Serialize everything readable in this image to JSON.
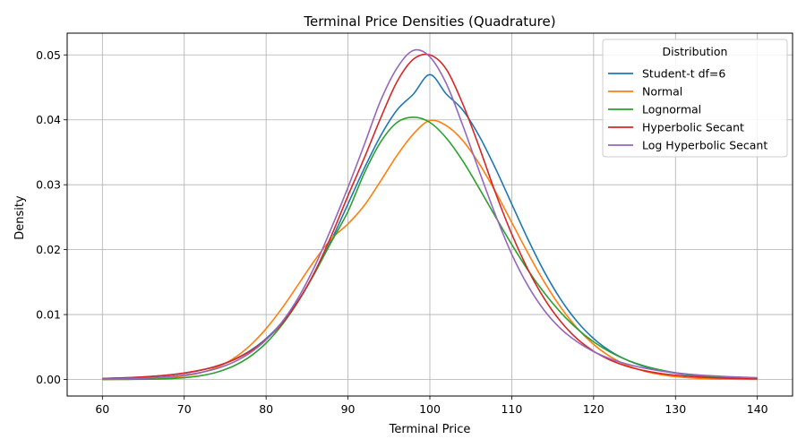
{
  "chart_data": {
    "type": "line",
    "title": "Terminal Price Densities (Quadrature)",
    "xlabel": "Terminal Price",
    "ylabel": "Density",
    "xlim": [
      55.7,
      144.3
    ],
    "ylim": [
      -0.00255,
      0.05335
    ],
    "xticks": [
      60,
      70,
      80,
      90,
      100,
      110,
      120,
      130,
      140
    ],
    "xtick_labels": [
      "60",
      "70",
      "80",
      "90",
      "100",
      "110",
      "120",
      "130",
      "140"
    ],
    "yticks": [
      0,
      0.01,
      0.02,
      0.03,
      0.04,
      0.05
    ],
    "ytick_labels": [
      "0.00",
      "0.01",
      "0.02",
      "0.03",
      "0.04",
      "0.05"
    ],
    "grid": true,
    "legend": {
      "title": "Distribution",
      "position": "top-right"
    },
    "x": [
      60,
      62,
      64,
      66,
      68,
      70,
      72,
      74,
      76,
      78,
      80,
      82,
      84,
      86,
      88,
      90,
      92,
      94,
      96,
      98,
      100,
      102,
      104,
      106,
      108,
      110,
      112,
      114,
      116,
      118,
      120,
      122,
      124,
      126,
      128,
      130,
      132,
      134,
      136,
      138,
      140
    ],
    "series": [
      {
        "name": "Student-t df=6",
        "color": "#1f77b4",
        "values": [
          0.00015,
          0.00022,
          0.00032,
          0.00046,
          0.00067,
          0.00097,
          0.00142,
          0.00208,
          0.00303,
          0.00439,
          0.0063,
          0.0089,
          0.0123,
          0.01654,
          0.02155,
          0.02703,
          0.03255,
          0.03757,
          0.04153,
          0.04398,
          0.04696,
          0.04398,
          0.04153,
          0.03757,
          0.03255,
          0.02703,
          0.02155,
          0.01654,
          0.0123,
          0.0089,
          0.0063,
          0.00439,
          0.00303,
          0.00208,
          0.00142,
          0.00097,
          0.00067,
          0.00046,
          0.00032,
          0.00022,
          0.00015
        ]
      },
      {
        "name": "Normal",
        "color": "#ff7f0e",
        "values": [
          1e-05,
          2e-05,
          5e-05,
          0.00012,
          0.00027,
          0.00054,
          0.00104,
          0.00189,
          0.00323,
          0.00519,
          0.00783,
          0.01109,
          0.01477,
          0.01848,
          0.02171,
          0.02397,
          0.02681,
          0.0306,
          0.03453,
          0.03783,
          0.03989,
          0.0391,
          0.03683,
          0.03329,
          0.02897,
          0.0242,
          0.01942,
          0.01497,
          0.01109,
          0.0079,
          0.0054,
          0.00355,
          0.00224,
          0.00136,
          0.00079,
          0.00044,
          0.00024,
          0.00012,
          6e-05,
          3e-05,
          1e-05
        ]
      },
      {
        "name": "Lognormal",
        "color": "#2ca02c",
        "values": [
          0.0,
          1e-05,
          2e-05,
          5e-05,
          0.00012,
          0.00027,
          0.00058,
          0.00113,
          0.00206,
          0.0035,
          0.00561,
          0.0085,
          0.01219,
          0.01655,
          0.02127,
          0.02589,
          0.0318,
          0.0366,
          0.0396,
          0.0404,
          0.0396,
          0.0372,
          0.0337,
          0.0295,
          0.0251,
          0.0208,
          0.0168,
          0.0133,
          0.0103,
          0.0078,
          0.0058,
          0.00424,
          0.00305,
          0.00216,
          0.00151,
          0.00104,
          0.00071,
          0.00048,
          0.00032,
          0.00021,
          0.00014
        ]
      },
      {
        "name": "Hyperbolic Secant",
        "color": "#d62728",
        "values": [
          0.00016,
          0.00023,
          0.00033,
          0.00048,
          0.00069,
          0.001,
          0.00144,
          0.00208,
          0.003,
          0.00431,
          0.00616,
          0.00874,
          0.01222,
          0.01674,
          0.02224,
          0.02831,
          0.03415,
          0.0403,
          0.0459,
          0.04935,
          0.05,
          0.0478,
          0.0425,
          0.0359,
          0.0288,
          0.0224,
          0.0169,
          0.0124,
          0.0089,
          0.00625,
          0.00435,
          0.003,
          0.00206,
          0.00141,
          0.00096,
          0.00065,
          0.00044,
          0.0003,
          0.0002,
          0.00014,
          9e-05
        ]
      },
      {
        "name": "Log Hyperbolic Secant",
        "color": "#9467bd",
        "values": [
          6e-05,
          0.0001,
          0.00016,
          0.00026,
          0.00042,
          0.00068,
          0.00108,
          0.0017,
          0.00265,
          0.00406,
          0.0061,
          0.00895,
          0.01275,
          0.0176,
          0.0234,
          0.0296,
          0.0362,
          0.043,
          0.048,
          0.0507,
          0.0497,
          0.0456,
          0.0392,
          0.0322,
          0.0254,
          0.0193,
          0.0144,
          0.0106,
          0.0078,
          0.0058,
          0.0043,
          0.0032,
          0.0024,
          0.0018,
          0.00136,
          0.00103,
          0.00078,
          0.0006,
          0.00046,
          0.00036,
          0.00028
        ]
      }
    ]
  }
}
